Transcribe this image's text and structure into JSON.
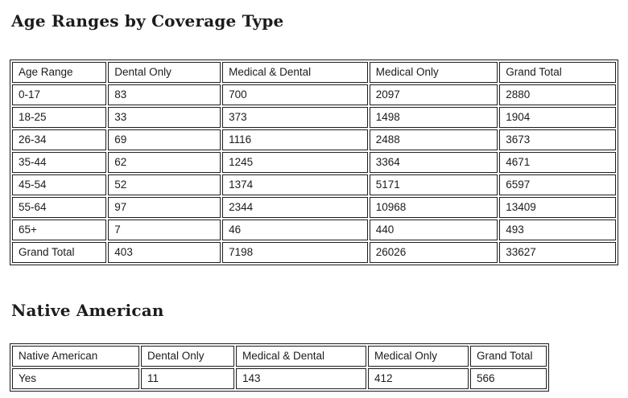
{
  "page": {
    "background": "#ffffff",
    "text_color": "#1c1c1c",
    "border_color": "#1d1d1d"
  },
  "chart_data": [
    {
      "type": "table",
      "title": "Age Ranges by Coverage Type",
      "columns": [
        "Age Range",
        "Dental Only",
        "Medical & Dental",
        "Medical Only",
        "Grand Total"
      ],
      "rows": [
        [
          "0-17",
          83,
          700,
          2097,
          2880
        ],
        [
          "18-25",
          33,
          373,
          1498,
          1904
        ],
        [
          "26-34",
          69,
          1116,
          2488,
          3673
        ],
        [
          "35-44",
          62,
          1245,
          3364,
          4671
        ],
        [
          "45-54",
          52,
          1374,
          5171,
          6597
        ],
        [
          "55-64",
          97,
          2344,
          10968,
          13409
        ],
        [
          "65+",
          7,
          46,
          440,
          493
        ],
        [
          "Grand Total",
          403,
          7198,
          26026,
          33627
        ]
      ],
      "layout_hints": {
        "grid": "on",
        "header_position": "top"
      }
    },
    {
      "type": "table",
      "title": "Native American",
      "columns": [
        "Native American",
        "Dental Only",
        "Medical & Dental",
        "Medical Only",
        "Grand Total"
      ],
      "rows": [
        [
          "Yes",
          11,
          143,
          412,
          566
        ]
      ],
      "layout_hints": {
        "grid": "on",
        "header_position": "top"
      }
    }
  ]
}
